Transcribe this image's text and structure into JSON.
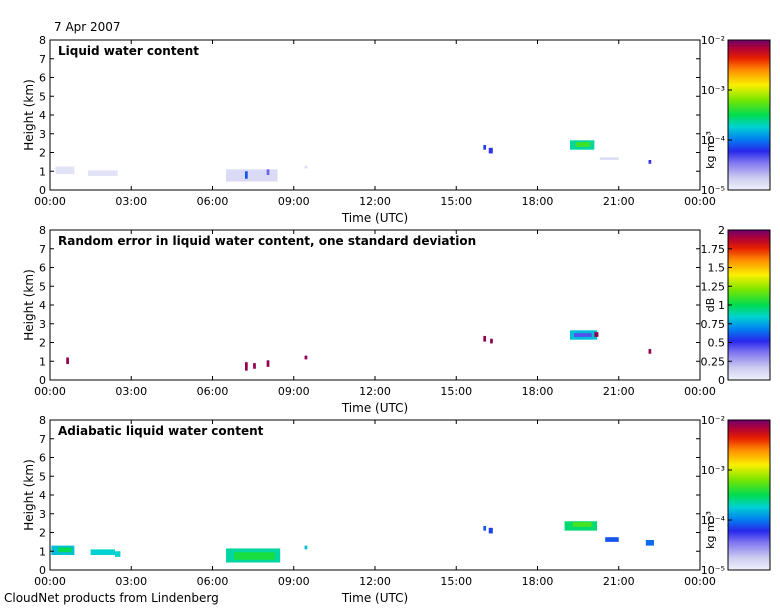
{
  "header": {
    "date": "7 Apr 2007"
  },
  "footer": {
    "credit": "CloudNet products from Lindenberg"
  },
  "shared_axes": {
    "xlabel": "Time (UTC)",
    "ylabel": "Height (km)",
    "x_ticks": [
      "00:00",
      "03:00",
      "06:00",
      "09:00",
      "12:00",
      "15:00",
      "18:00",
      "21:00",
      "00:00"
    ],
    "xlim_hours": [
      0,
      24
    ],
    "y_ticks": [
      "0",
      "1",
      "2",
      "3",
      "4",
      "5",
      "6",
      "7",
      "8"
    ],
    "ylim_km": [
      0,
      8
    ]
  },
  "chart_data": [
    {
      "type": "heatmap",
      "title": "Liquid water content",
      "xlabel": "Time (UTC)",
      "ylabel": "Height (km)",
      "xlim": [
        0,
        24
      ],
      "ylim": [
        0,
        8
      ],
      "colorbar": {
        "scale": "log",
        "min": 1e-05,
        "max": 0.01,
        "unit": "kg m⁻³",
        "tick_labels": [
          "10⁻²",
          "10⁻³",
          "10⁻⁴",
          "10⁻⁵"
        ],
        "tick_values": [
          0.01,
          0.001,
          0.0001,
          1e-05
        ]
      },
      "patches": [
        {
          "t0": 0.2,
          "t1": 0.9,
          "h0": 0.85,
          "h1": 1.25,
          "level": 0.03
        },
        {
          "t0": 1.4,
          "t1": 2.5,
          "h0": 0.75,
          "h1": 1.05,
          "level": 0.03
        },
        {
          "t0": 6.5,
          "t1": 8.4,
          "h0": 0.45,
          "h1": 1.1,
          "level": 0.05
        },
        {
          "t0": 7.2,
          "t1": 7.3,
          "h0": 0.6,
          "h1": 1.0,
          "level": 0.3
        },
        {
          "t0": 8.0,
          "t1": 8.1,
          "h0": 0.8,
          "h1": 1.1,
          "level": 0.2
        },
        {
          "t0": 9.4,
          "t1": 9.5,
          "h0": 1.15,
          "h1": 1.3,
          "level": 0.05
        },
        {
          "t0": 16.0,
          "t1": 16.1,
          "h0": 2.15,
          "h1": 2.4,
          "level": 0.28
        },
        {
          "t0": 16.2,
          "t1": 16.35,
          "h0": 1.95,
          "h1": 2.25,
          "level": 0.25
        },
        {
          "t0": 19.2,
          "t1": 20.1,
          "h0": 2.15,
          "h1": 2.65,
          "level": 0.45
        },
        {
          "t0": 19.4,
          "t1": 19.95,
          "h0": 2.3,
          "h1": 2.55,
          "level": 0.55
        },
        {
          "t0": 20.3,
          "t1": 21.0,
          "h0": 1.6,
          "h1": 1.75,
          "level": 0.04
        },
        {
          "t0": 22.1,
          "t1": 22.2,
          "h0": 1.4,
          "h1": 1.6,
          "level": 0.25
        }
      ]
    },
    {
      "type": "heatmap",
      "title": "Random error in liquid water content, one standard deviation",
      "xlabel": "Time (UTC)",
      "ylabel": "Height (km)",
      "xlim": [
        0,
        24
      ],
      "ylim": [
        0,
        8
      ],
      "colorbar": {
        "scale": "linear",
        "min": 0,
        "max": 2,
        "unit": "dB",
        "tick_labels": [
          "2",
          "1.75",
          "1.5",
          "1.25",
          "1",
          "0.75",
          "0.5",
          "0.25",
          "0"
        ],
        "tick_values": [
          2,
          1.75,
          1.5,
          1.25,
          1,
          0.75,
          0.5,
          0.25,
          0
        ]
      },
      "patches": [
        {
          "t0": 0.6,
          "t1": 0.7,
          "h0": 0.85,
          "h1": 1.2,
          "level": 0.97
        },
        {
          "t0": 7.2,
          "t1": 7.3,
          "h0": 0.5,
          "h1": 0.95,
          "level": 0.97
        },
        {
          "t0": 7.5,
          "t1": 7.6,
          "h0": 0.6,
          "h1": 0.9,
          "level": 0.97
        },
        {
          "t0": 8.0,
          "t1": 8.1,
          "h0": 0.7,
          "h1": 1.05,
          "level": 0.97
        },
        {
          "t0": 9.4,
          "t1": 9.5,
          "h0": 1.1,
          "h1": 1.3,
          "level": 0.97
        },
        {
          "t0": 16.0,
          "t1": 16.1,
          "h0": 2.05,
          "h1": 2.35,
          "level": 0.97
        },
        {
          "t0": 16.25,
          "t1": 16.35,
          "h0": 1.95,
          "h1": 2.2,
          "level": 0.97
        },
        {
          "t0": 19.2,
          "t1": 20.2,
          "h0": 2.15,
          "h1": 2.65,
          "level": 0.4
        },
        {
          "t0": 19.35,
          "t1": 20.0,
          "h0": 2.3,
          "h1": 2.5,
          "level": 0.22
        },
        {
          "t0": 20.1,
          "t1": 20.25,
          "h0": 2.3,
          "h1": 2.55,
          "level": 0.97
        },
        {
          "t0": 22.1,
          "t1": 22.2,
          "h0": 1.4,
          "h1": 1.65,
          "level": 0.97
        }
      ]
    },
    {
      "type": "heatmap",
      "title": "Adiabatic liquid water content",
      "xlabel": "Time (UTC)",
      "ylabel": "Height (km)",
      "xlim": [
        0,
        24
      ],
      "ylim": [
        0,
        8
      ],
      "colorbar": {
        "scale": "log",
        "min": 1e-05,
        "max": 0.01,
        "unit": "kg m⁻³",
        "tick_labels": [
          "10⁻²",
          "10⁻³",
          "10⁻⁴",
          "10⁻⁵"
        ],
        "tick_values": [
          0.01,
          0.001,
          0.0001,
          1e-05
        ]
      },
      "patches": [
        {
          "t0": 0.05,
          "t1": 0.9,
          "h0": 0.8,
          "h1": 1.3,
          "level": 0.4
        },
        {
          "t0": 0.3,
          "t1": 0.8,
          "h0": 0.95,
          "h1": 1.2,
          "level": 0.5
        },
        {
          "t0": 1.5,
          "t1": 2.4,
          "h0": 0.8,
          "h1": 1.1,
          "level": 0.42
        },
        {
          "t0": 2.4,
          "t1": 2.6,
          "h0": 0.7,
          "h1": 1.0,
          "level": 0.42
        },
        {
          "t0": 6.5,
          "t1": 8.5,
          "h0": 0.4,
          "h1": 1.15,
          "level": 0.45
        },
        {
          "t0": 6.8,
          "t1": 8.3,
          "h0": 0.55,
          "h1": 0.95,
          "level": 0.52
        },
        {
          "t0": 9.4,
          "t1": 9.5,
          "h0": 1.1,
          "h1": 1.3,
          "level": 0.4
        },
        {
          "t0": 16.0,
          "t1": 16.1,
          "h0": 2.1,
          "h1": 2.35,
          "level": 0.3
        },
        {
          "t0": 16.2,
          "t1": 16.35,
          "h0": 1.95,
          "h1": 2.25,
          "level": 0.28
        },
        {
          "t0": 19.0,
          "t1": 20.2,
          "h0": 2.1,
          "h1": 2.6,
          "level": 0.48
        },
        {
          "t0": 19.3,
          "t1": 20.0,
          "h0": 2.3,
          "h1": 2.55,
          "level": 0.56
        },
        {
          "t0": 20.5,
          "t1": 21.0,
          "h0": 1.5,
          "h1": 1.75,
          "level": 0.3
        },
        {
          "t0": 22.0,
          "t1": 22.3,
          "h0": 1.3,
          "h1": 1.6,
          "level": 0.32
        }
      ]
    }
  ]
}
